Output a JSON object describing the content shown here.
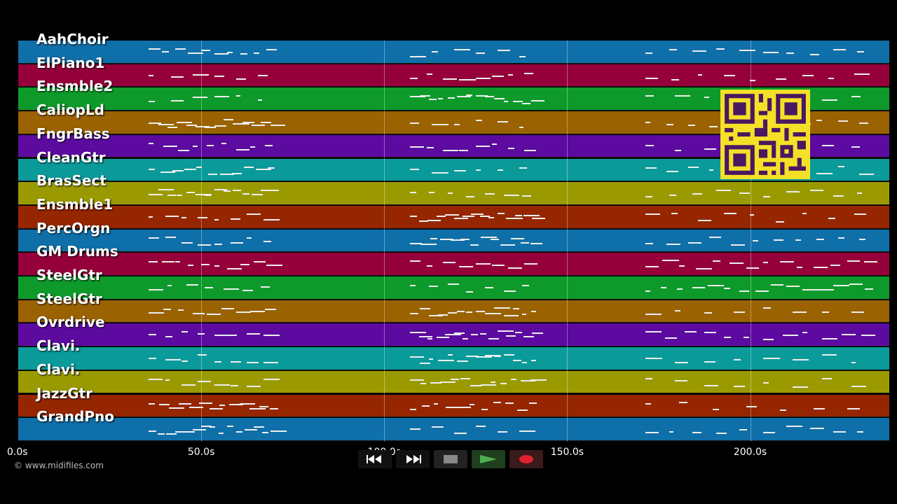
{
  "tracks": [
    {
      "name": "AahChoir",
      "color": "#0f6fa8"
    },
    {
      "name": "ElPiano1",
      "color": "#96003a"
    },
    {
      "name": "Ensmble2",
      "color": "#0d9a2a"
    },
    {
      "name": "CaliopLd",
      "color": "#9a6200"
    },
    {
      "name": "FngrBass",
      "color": "#5c0aa0"
    },
    {
      "name": "CleanGtr",
      "color": "#0b9a9a"
    },
    {
      "name": "BrasSect",
      "color": "#9a9a00"
    },
    {
      "name": "Ensmble1",
      "color": "#952600"
    },
    {
      "name": "PercOrgn",
      "color": "#0f6fa8"
    },
    {
      "name": "GM Drums",
      "color": "#96003a"
    },
    {
      "name": "SteelGtr",
      "color": "#0d9a2a"
    },
    {
      "name": "SteelGtr",
      "color": "#9a6200"
    },
    {
      "name": "Ovrdrive",
      "color": "#5c0aa0"
    },
    {
      "name": "Clavi.",
      "color": "#0b9a9a"
    },
    {
      "name": "Clavi.",
      "color": "#9a9a00"
    },
    {
      "name": "JazzGtr",
      "color": "#952600"
    },
    {
      "name": "GrandPno",
      "color": "#0f6fa8"
    }
  ],
  "timeline": {
    "ticks": [
      "0.0s",
      "50.0s",
      "100.0s",
      "150.0s",
      "200.0s"
    ],
    "tick_seconds": [
      0,
      50,
      100,
      150,
      200
    ],
    "duration_seconds": 238
  },
  "copyright": "© www.midifiles.com",
  "controls": {
    "rewind_icon": "rewind-icon",
    "forward_icon": "fast-forward-icon",
    "stop_icon": "stop-icon",
    "play_icon": "play-icon",
    "record_icon": "record-icon"
  },
  "qr_icon": "qr-code-icon"
}
